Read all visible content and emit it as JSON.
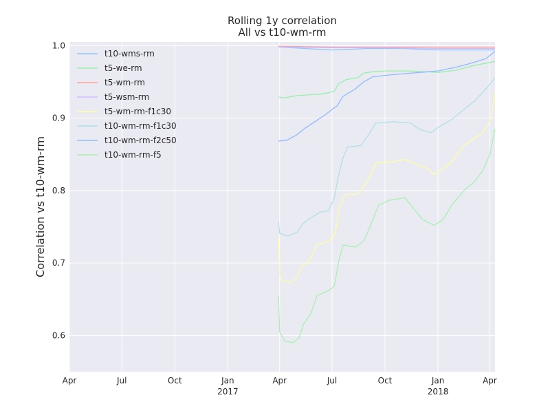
{
  "chart_data": {
    "type": "line",
    "title": "Rolling 1y correlation",
    "subtitle": "All vs t10-wm-rm",
    "xlabel": "",
    "ylabel": "Correlation vs t10-wm-rm",
    "xlim": [
      "2016-04-01",
      "2018-04-10"
    ],
    "ylim": [
      0.55,
      1.005
    ],
    "grid": true,
    "legend_position": "upper-left",
    "x_ticks": [
      {
        "date": "2016-04-01",
        "label": "Apr",
        "sublabel": ""
      },
      {
        "date": "2016-07-01",
        "label": "Jul",
        "sublabel": ""
      },
      {
        "date": "2016-10-01",
        "label": "Oct",
        "sublabel": ""
      },
      {
        "date": "2017-01-01",
        "label": "Jan",
        "sublabel": "2017"
      },
      {
        "date": "2017-04-01",
        "label": "Apr",
        "sublabel": ""
      },
      {
        "date": "2017-07-01",
        "label": "Jul",
        "sublabel": ""
      },
      {
        "date": "2017-10-01",
        "label": "Oct",
        "sublabel": ""
      },
      {
        "date": "2018-01-01",
        "label": "Jan",
        "sublabel": "2018"
      },
      {
        "date": "2018-04-01",
        "label": "Apr",
        "sublabel": ""
      }
    ],
    "y_ticks": [
      {
        "value": 0.6,
        "label": "0.6"
      },
      {
        "value": 0.7,
        "label": "0.7"
      },
      {
        "value": 0.8,
        "label": "0.8"
      },
      {
        "value": 0.9,
        "label": "0.9"
      },
      {
        "value": 1.0,
        "label": "1.0"
      }
    ],
    "series": [
      {
        "name": "t10-wms-rm",
        "color": "#92c6ff",
        "points": [
          [
            "2017-03-30",
            0.998
          ],
          [
            "2017-05-15",
            0.996
          ],
          [
            "2017-07-01",
            0.994
          ],
          [
            "2017-09-01",
            0.996
          ],
          [
            "2017-11-01",
            0.996
          ],
          [
            "2018-01-01",
            0.994
          ],
          [
            "2018-03-01",
            0.994
          ],
          [
            "2018-04-10",
            0.994
          ]
        ]
      },
      {
        "name": "t5-we-rm",
        "color": "#97f0aa",
        "points": [
          [
            "2017-03-30",
            0.929
          ],
          [
            "2017-04-10",
            0.928
          ],
          [
            "2017-05-01",
            0.931
          ],
          [
            "2017-05-20",
            0.932
          ],
          [
            "2017-06-10",
            0.933
          ],
          [
            "2017-06-25",
            0.935
          ],
          [
            "2017-07-05",
            0.937
          ],
          [
            "2017-07-12",
            0.947
          ],
          [
            "2017-07-25",
            0.953
          ],
          [
            "2017-08-15",
            0.956
          ],
          [
            "2017-08-25",
            0.962
          ],
          [
            "2017-09-10",
            0.964
          ],
          [
            "2017-10-01",
            0.965
          ],
          [
            "2017-11-15",
            0.965
          ],
          [
            "2018-01-01",
            0.963
          ],
          [
            "2018-02-01",
            0.966
          ],
          [
            "2018-03-01",
            0.972
          ],
          [
            "2018-04-10",
            0.978
          ]
        ]
      },
      {
        "name": "t5-wm-rm",
        "color": "#ff9f9a",
        "points": [
          [
            "2017-03-30",
            0.999
          ],
          [
            "2017-07-01",
            0.998
          ],
          [
            "2017-10-01",
            0.998
          ],
          [
            "2018-01-01",
            0.998
          ],
          [
            "2018-04-10",
            0.998
          ]
        ]
      },
      {
        "name": "t5-wsm-rm",
        "color": "#d0bbff",
        "points": [
          [
            "2017-03-30",
            0.998
          ],
          [
            "2017-07-01",
            0.997
          ],
          [
            "2017-10-01",
            0.997
          ],
          [
            "2018-01-01",
            0.996
          ],
          [
            "2018-04-10",
            0.996
          ]
        ]
      },
      {
        "name": "t5-wm-rm-f1c30",
        "color": "#fffea3",
        "points": [
          [
            "2017-03-30",
            0.735
          ],
          [
            "2017-04-01",
            0.683
          ],
          [
            "2017-04-05",
            0.675
          ],
          [
            "2017-04-20",
            0.673
          ],
          [
            "2017-05-01",
            0.68
          ],
          [
            "2017-05-08",
            0.695
          ],
          [
            "2017-05-20",
            0.7
          ],
          [
            "2017-05-28",
            0.712
          ],
          [
            "2017-06-05",
            0.725
          ],
          [
            "2017-06-25",
            0.73
          ],
          [
            "2017-07-05",
            0.738
          ],
          [
            "2017-07-10",
            0.757
          ],
          [
            "2017-07-15",
            0.78
          ],
          [
            "2017-07-25",
            0.795
          ],
          [
            "2017-08-15",
            0.795
          ],
          [
            "2017-08-25",
            0.805
          ],
          [
            "2017-09-05",
            0.82
          ],
          [
            "2017-09-15",
            0.838
          ],
          [
            "2017-10-15",
            0.84
          ],
          [
            "2017-11-05",
            0.843
          ],
          [
            "2017-11-25",
            0.836
          ],
          [
            "2017-12-15",
            0.83
          ],
          [
            "2017-12-25",
            0.822
          ],
          [
            "2018-01-10",
            0.83
          ],
          [
            "2018-01-25",
            0.84
          ],
          [
            "2018-02-15",
            0.862
          ],
          [
            "2018-03-05",
            0.872
          ],
          [
            "2018-03-20",
            0.88
          ],
          [
            "2018-04-01",
            0.895
          ],
          [
            "2018-04-06",
            0.915
          ],
          [
            "2018-04-10",
            0.935
          ]
        ]
      },
      {
        "name": "t10-wm-rm-f1c30",
        "color": "#b0e0e6",
        "points": [
          [
            "2017-03-30",
            0.757
          ],
          [
            "2017-04-01",
            0.741
          ],
          [
            "2017-04-15",
            0.737
          ],
          [
            "2017-05-01",
            0.742
          ],
          [
            "2017-05-10",
            0.753
          ],
          [
            "2017-05-20",
            0.76
          ],
          [
            "2017-06-10",
            0.77
          ],
          [
            "2017-06-25",
            0.772
          ],
          [
            "2017-07-05",
            0.79
          ],
          [
            "2017-07-12",
            0.82
          ],
          [
            "2017-07-20",
            0.845
          ],
          [
            "2017-07-28",
            0.86
          ],
          [
            "2017-08-20",
            0.862
          ],
          [
            "2017-09-05",
            0.88
          ],
          [
            "2017-09-15",
            0.893
          ],
          [
            "2017-10-15",
            0.895
          ],
          [
            "2017-11-15",
            0.893
          ],
          [
            "2017-12-01",
            0.884
          ],
          [
            "2017-12-20",
            0.88
          ],
          [
            "2018-01-01",
            0.887
          ],
          [
            "2018-01-25",
            0.898
          ],
          [
            "2018-02-15",
            0.912
          ],
          [
            "2018-03-05",
            0.923
          ],
          [
            "2018-03-25",
            0.94
          ],
          [
            "2018-04-10",
            0.955
          ]
        ]
      },
      {
        "name": "t10-wm-rm-f2c50",
        "color": "#8ebbff",
        "points": [
          [
            "2017-03-30",
            0.868
          ],
          [
            "2017-04-15",
            0.87
          ],
          [
            "2017-05-01",
            0.877
          ],
          [
            "2017-05-15",
            0.886
          ],
          [
            "2017-06-01",
            0.895
          ],
          [
            "2017-06-20",
            0.905
          ],
          [
            "2017-07-01",
            0.912
          ],
          [
            "2017-07-10",
            0.917
          ],
          [
            "2017-07-20",
            0.93
          ],
          [
            "2017-08-10",
            0.94
          ],
          [
            "2017-08-25",
            0.95
          ],
          [
            "2017-09-10",
            0.957
          ],
          [
            "2017-10-15",
            0.96
          ],
          [
            "2017-12-01",
            0.963
          ],
          [
            "2018-01-01",
            0.965
          ],
          [
            "2018-02-01",
            0.97
          ],
          [
            "2018-03-01",
            0.976
          ],
          [
            "2018-03-25",
            0.982
          ],
          [
            "2018-04-10",
            0.992
          ]
        ]
      },
      {
        "name": "t10-wm-rm-f5",
        "color": "#a8f0b0",
        "points": [
          [
            "2017-03-30",
            0.655
          ],
          [
            "2017-04-01",
            0.605
          ],
          [
            "2017-04-10",
            0.592
          ],
          [
            "2017-04-25",
            0.59
          ],
          [
            "2017-05-05",
            0.597
          ],
          [
            "2017-05-12",
            0.615
          ],
          [
            "2017-05-25",
            0.63
          ],
          [
            "2017-06-05",
            0.655
          ],
          [
            "2017-06-25",
            0.662
          ],
          [
            "2017-07-05",
            0.668
          ],
          [
            "2017-07-12",
            0.7
          ],
          [
            "2017-07-20",
            0.725
          ],
          [
            "2017-08-10",
            0.722
          ],
          [
            "2017-08-25",
            0.73
          ],
          [
            "2017-09-05",
            0.75
          ],
          [
            "2017-09-20",
            0.78
          ],
          [
            "2017-10-10",
            0.787
          ],
          [
            "2017-11-05",
            0.79
          ],
          [
            "2017-11-20",
            0.775
          ],
          [
            "2017-12-05",
            0.76
          ],
          [
            "2017-12-25",
            0.752
          ],
          [
            "2018-01-10",
            0.76
          ],
          [
            "2018-01-25",
            0.78
          ],
          [
            "2018-02-15",
            0.8
          ],
          [
            "2018-03-05",
            0.812
          ],
          [
            "2018-03-20",
            0.828
          ],
          [
            "2018-04-01",
            0.85
          ],
          [
            "2018-04-10",
            0.885
          ]
        ]
      }
    ]
  }
}
